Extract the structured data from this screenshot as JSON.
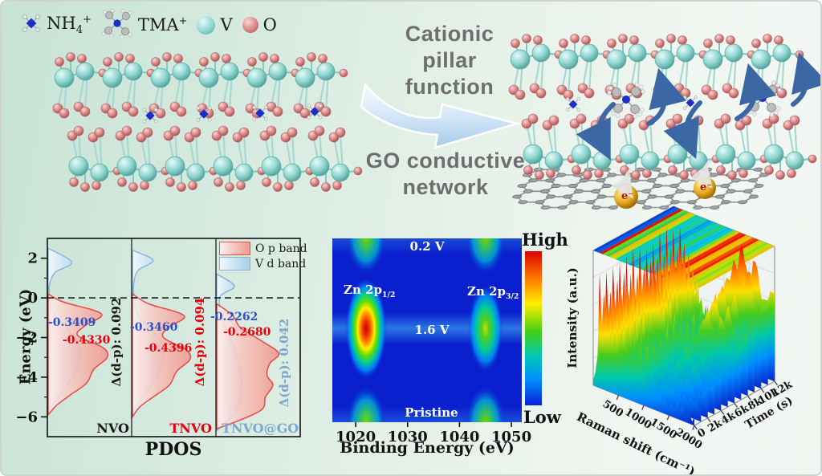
{
  "colors": {
    "v_atom": "#8fd6d0",
    "o_atom": "#d98585",
    "nh4_blue": "#1c2ec8",
    "accent_blue": "#2b50c8",
    "accent_red": "#e8000d",
    "accent_steel": "#7da7cc",
    "arrow_fill": "#cfe4f6",
    "process_text_gray": "#6e6e6e"
  },
  "header_legend": {
    "items": [
      {
        "pre": "NH",
        "sub": "4",
        "sup": "+"
      },
      {
        "pre": "TMA",
        "sup": "+"
      },
      {
        "pre": "V"
      },
      {
        "pre": "O"
      }
    ]
  },
  "process": {
    "top_lines": [
      "Cationic",
      "pillar",
      "function"
    ],
    "bottom_lines": [
      "GO conductive",
      "network"
    ],
    "electron_label": "e⁻"
  },
  "chart_data": [
    {
      "id": "pdos",
      "type": "area",
      "title": "PDOS",
      "ylabel": "Energy (eV)",
      "ylim": [
        3,
        -7
      ],
      "yticks": [
        2,
        0,
        -2,
        -4,
        -6
      ],
      "fermi_energy": 0,
      "legend": [
        {
          "label": "O p band",
          "color": "#f29a90"
        },
        {
          "label": "V d band",
          "color": "#aed2ec"
        }
      ],
      "panels": [
        {
          "name": "NVO",
          "value_blue": "-0.3409",
          "value_red": "-0.4330",
          "delta_label": "Δ(d-p): 0.092",
          "op_band": [
            [
              0.2,
              0
            ],
            [
              -0.2,
              0.2
            ],
            [
              -0.8,
              0.72
            ],
            [
              -1.4,
              0.5
            ],
            [
              -1.9,
              0.4
            ],
            [
              -2.5,
              0.74
            ],
            [
              -3.0,
              0.8
            ],
            [
              -3.6,
              0.62
            ],
            [
              -4.3,
              0.52
            ],
            [
              -4.9,
              0.3
            ],
            [
              -5.4,
              0.12
            ],
            [
              -5.9,
              0
            ]
          ],
          "vd_band": [
            [
              2.5,
              0
            ],
            [
              1.8,
              0.32
            ],
            [
              1.3,
              0.1
            ],
            [
              0.7,
              0.02
            ],
            [
              0.0,
              0.02
            ],
            [
              -0.8,
              0.07
            ],
            [
              -1.5,
              0.24
            ],
            [
              -2.2,
              0.4
            ],
            [
              -3.0,
              0.44
            ],
            [
              -3.8,
              0.36
            ],
            [
              -4.6,
              0.22
            ],
            [
              -5.2,
              0.09
            ],
            [
              -5.7,
              0
            ]
          ]
        },
        {
          "name": "TNVO",
          "value_blue": "-0.3460",
          "value_red": "-0.4396",
          "delta_label": "Δ(d-p): 0.094",
          "op_band": [
            [
              0.2,
              0
            ],
            [
              -0.3,
              0.22
            ],
            [
              -0.9,
              0.7
            ],
            [
              -1.5,
              0.48
            ],
            [
              -2.0,
              0.42
            ],
            [
              -2.6,
              0.72
            ],
            [
              -3.1,
              0.78
            ],
            [
              -3.7,
              0.6
            ],
            [
              -4.4,
              0.5
            ],
            [
              -5.0,
              0.28
            ],
            [
              -5.5,
              0.1
            ],
            [
              -6.0,
              0
            ]
          ],
          "vd_band": [
            [
              2.4,
              0
            ],
            [
              1.9,
              0.28
            ],
            [
              1.4,
              0.08
            ],
            [
              0.8,
              0.02
            ],
            [
              0.0,
              0.02
            ],
            [
              -0.9,
              0.08
            ],
            [
              -1.6,
              0.26
            ],
            [
              -2.3,
              0.4
            ],
            [
              -3.1,
              0.42
            ],
            [
              -3.9,
              0.34
            ],
            [
              -4.7,
              0.2
            ],
            [
              -5.3,
              0.08
            ],
            [
              -5.8,
              0
            ]
          ]
        },
        {
          "name": "TNVO@GO",
          "value_blue": "-0.2262",
          "value_red": "-0.2680",
          "delta_label": "Δ(d-p): 0.042",
          "op_band": [
            [
              -0.3,
              0
            ],
            [
              -0.9,
              0.22
            ],
            [
              -1.5,
              0.32
            ],
            [
              -2.2,
              0.62
            ],
            [
              -2.8,
              0.84
            ],
            [
              -3.3,
              0.72
            ],
            [
              -3.9,
              0.68
            ],
            [
              -4.4,
              0.76
            ],
            [
              -5.0,
              0.66
            ],
            [
              -5.6,
              0.62
            ],
            [
              -6.1,
              0.36
            ],
            [
              -6.6,
              0
            ]
          ],
          "vd_band": [
            [
              1.2,
              0
            ],
            [
              0.6,
              0.24
            ],
            [
              0.1,
              0.05
            ],
            [
              -0.6,
              0.05
            ],
            [
              -1.5,
              0.12
            ],
            [
              -2.5,
              0.24
            ],
            [
              -3.5,
              0.32
            ],
            [
              -4.5,
              0.34
            ],
            [
              -5.5,
              0.3
            ],
            [
              -6.2,
              0.14
            ],
            [
              -6.7,
              0
            ]
          ]
        }
      ]
    },
    {
      "id": "xps",
      "type": "heatmap",
      "xlabel": "Binding Energy (eV)",
      "xticks": [
        1020,
        1030,
        1040,
        1050
      ],
      "xlim": [
        1015.5,
        1052
      ],
      "colorbar": {
        "high": "High",
        "low": "Low"
      },
      "rows": [
        {
          "label": "0.2 V",
          "frac": 0.0
        },
        {
          "label": "1.6 V",
          "frac": 0.49
        },
        {
          "label": "Pristine",
          "frac": 1.0
        }
      ],
      "peak_labels": [
        {
          "main": "Zn 2p",
          "sub": "1/2"
        },
        {
          "main": "Zn 2p",
          "sub": "3/2"
        }
      ],
      "peaks": [
        {
          "ev": 1022,
          "row": 0,
          "level": "medium"
        },
        {
          "ev": 1045,
          "row": 0,
          "level": "medium"
        },
        {
          "ev": 1022,
          "row": 1,
          "level": "high"
        },
        {
          "ev": 1045,
          "row": 1,
          "level": "warm"
        },
        {
          "ev": 1022,
          "row": 2,
          "level": "medium"
        },
        {
          "ev": 1045,
          "row": 2,
          "level": "medium"
        }
      ]
    },
    {
      "id": "raman",
      "type": "area",
      "zlabel": "Intensity (a.u.)",
      "xlabel": "Raman shift (cm⁻¹)",
      "xticks": [
        "500",
        "1000",
        "1500",
        "2000"
      ],
      "xlim": [
        0,
        2000
      ],
      "ylabel": "Time (s)",
      "yticks": [
        "0",
        "2k",
        "4k",
        "6k",
        "8k",
        "10k",
        "12k"
      ],
      "n_traces": 13,
      "base_profile": [
        0.04,
        0.1,
        0.3,
        0.92,
        0.5,
        0.8,
        0.45,
        0.7,
        0.4,
        0.6,
        0.35,
        0.55,
        0.3,
        0.38,
        0.25,
        0.33,
        0.22,
        0.3,
        0.24,
        0.35,
        0.26,
        0.3,
        0.45,
        0.3,
        0.28,
        0.2,
        0.16,
        0.14,
        0.13,
        0.12,
        0.12,
        0.11,
        0.11,
        0.1,
        0.1,
        0.1,
        0.1,
        0.11,
        0.1,
        0.1,
        0.09,
        0.09,
        0.09,
        0.08,
        0.08,
        0.08,
        0.07,
        0.06
      ],
      "growth_profile": [
        0.05,
        0.05,
        0.05,
        0.05,
        0.05,
        0.05,
        0.05,
        0.05,
        0.05,
        0.05,
        0.05,
        0.05,
        0.05,
        0.05,
        0.05,
        0.05,
        0.05,
        0.05,
        0.05,
        0.05,
        0.05,
        0.05,
        0.05,
        0.06,
        0.08,
        0.12,
        0.2,
        0.3,
        0.45,
        0.6,
        0.72,
        0.82,
        0.85,
        0.78,
        0.68,
        0.62,
        0.66,
        0.78,
        0.84,
        0.76,
        0.62,
        0.55,
        0.5,
        0.52,
        0.56,
        0.6,
        0.65,
        0.68
      ]
    }
  ]
}
